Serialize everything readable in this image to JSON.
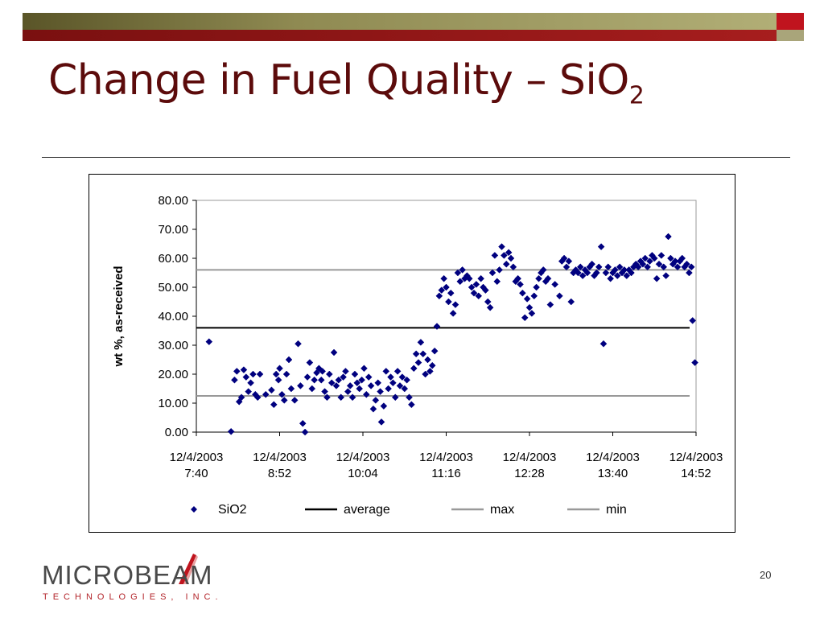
{
  "slide": {
    "title_main": "Change in Fuel Quality – SiO",
    "title_sub": "2",
    "page_number": "20",
    "logo_word": "MICROBEAM",
    "logo_sub": "TECHNOLOGIES, INC.",
    "colors": {
      "title": "#5c0b0b",
      "bar_dark": "#7a1010",
      "bar_olive": "#8f8a52",
      "accent_red": "#c0141e"
    }
  },
  "chart_data": {
    "type": "scatter",
    "ylabel": "wt %, as-received",
    "xlabel": "",
    "ylim": [
      0,
      80
    ],
    "y_ticks": [
      "0.00",
      "10.00",
      "20.00",
      "30.00",
      "40.00",
      "50.00",
      "60.00",
      "70.00",
      "80.00"
    ],
    "x_tick_labels": [
      [
        "12/4/2003",
        "7:40"
      ],
      [
        "12/4/2003",
        "8:52"
      ],
      [
        "12/4/2003",
        "10:04"
      ],
      [
        "12/4/2003",
        "11:16"
      ],
      [
        "12/4/2003",
        "12:28"
      ],
      [
        "12/4/2003",
        "13:40"
      ],
      [
        "12/4/2003",
        "14:52"
      ]
    ],
    "x_range_minutes": [
      460,
      892
    ],
    "grid": false,
    "legend_position": "bottom",
    "series": [
      {
        "name": "SiO2",
        "kind": "marker",
        "color": "#00007f",
        "points": [
          [
            471,
            31.2
          ],
          [
            490,
            0.2
          ],
          [
            493,
            18
          ],
          [
            495,
            21
          ],
          [
            497,
            10.5
          ],
          [
            499,
            12
          ],
          [
            501,
            21.5
          ],
          [
            503,
            19
          ],
          [
            505,
            14
          ],
          [
            507,
            17
          ],
          [
            509,
            20
          ],
          [
            511,
            13
          ],
          [
            513,
            12
          ],
          [
            515,
            20
          ],
          [
            520,
            13
          ],
          [
            525,
            14.5
          ],
          [
            527,
            9.5
          ],
          [
            529,
            20
          ],
          [
            531,
            18
          ],
          [
            532,
            22
          ],
          [
            534,
            13
          ],
          [
            536,
            11
          ],
          [
            538,
            20
          ],
          [
            540,
            25
          ],
          [
            542,
            15
          ],
          [
            545,
            11
          ],
          [
            548,
            30.5
          ],
          [
            550,
            16
          ],
          [
            552,
            3
          ],
          [
            554,
            0
          ],
          [
            556,
            19
          ],
          [
            558,
            24
          ],
          [
            560,
            15
          ],
          [
            562,
            18
          ],
          [
            564,
            20.5
          ],
          [
            566,
            22
          ],
          [
            568,
            18
          ],
          [
            569,
            21
          ],
          [
            571,
            14
          ],
          [
            573,
            12
          ],
          [
            575,
            20
          ],
          [
            577,
            17
          ],
          [
            579,
            27.5
          ],
          [
            581,
            16
          ],
          [
            583,
            18
          ],
          [
            585,
            12
          ],
          [
            587,
            19
          ],
          [
            589,
            21
          ],
          [
            591,
            14
          ],
          [
            593,
            16
          ],
          [
            595,
            12
          ],
          [
            597,
            20
          ],
          [
            599,
            17
          ],
          [
            601,
            15
          ],
          [
            603,
            18
          ],
          [
            605,
            22
          ],
          [
            607,
            13
          ],
          [
            609,
            19
          ],
          [
            611,
            16
          ],
          [
            613,
            8
          ],
          [
            615,
            11
          ],
          [
            617,
            17
          ],
          [
            619,
            14
          ],
          [
            620,
            3.5
          ],
          [
            622,
            9
          ],
          [
            624,
            21
          ],
          [
            626,
            15
          ],
          [
            628,
            19
          ],
          [
            630,
            17
          ],
          [
            632,
            12
          ],
          [
            634,
            21
          ],
          [
            636,
            16
          ],
          [
            638,
            19
          ],
          [
            640,
            15
          ],
          [
            642,
            18
          ],
          [
            644,
            12
          ],
          [
            646,
            9.5
          ],
          [
            648,
            22
          ],
          [
            650,
            27
          ],
          [
            652,
            24
          ],
          [
            654,
            31
          ],
          [
            656,
            27
          ],
          [
            658,
            20
          ],
          [
            660,
            25
          ],
          [
            662,
            21
          ],
          [
            664,
            23
          ],
          [
            666,
            28
          ],
          [
            668,
            36.5
          ],
          [
            670,
            47
          ],
          [
            672,
            49
          ],
          [
            674,
            53
          ],
          [
            676,
            50
          ],
          [
            678,
            45
          ],
          [
            680,
            48
          ],
          [
            682,
            41
          ],
          [
            684,
            44
          ],
          [
            686,
            55
          ],
          [
            688,
            52
          ],
          [
            690,
            56
          ],
          [
            692,
            53
          ],
          [
            694,
            54
          ],
          [
            696,
            53
          ],
          [
            698,
            50
          ],
          [
            700,
            48
          ],
          [
            702,
            51
          ],
          [
            704,
            47
          ],
          [
            706,
            53
          ],
          [
            708,
            50
          ],
          [
            710,
            49
          ],
          [
            712,
            45
          ],
          [
            714,
            43
          ],
          [
            716,
            55
          ],
          [
            718,
            61
          ],
          [
            720,
            52
          ],
          [
            722,
            56
          ],
          [
            724,
            64
          ],
          [
            726,
            61
          ],
          [
            728,
            58
          ],
          [
            730,
            62
          ],
          [
            732,
            60
          ],
          [
            734,
            57
          ],
          [
            736,
            52
          ],
          [
            738,
            53
          ],
          [
            740,
            51
          ],
          [
            742,
            48
          ],
          [
            744,
            39.5
          ],
          [
            746,
            46
          ],
          [
            748,
            43
          ],
          [
            750,
            41
          ],
          [
            752,
            47
          ],
          [
            754,
            50
          ],
          [
            756,
            53
          ],
          [
            758,
            55
          ],
          [
            760,
            56
          ],
          [
            762,
            52
          ],
          [
            764,
            53
          ],
          [
            766,
            44
          ],
          [
            770,
            51
          ],
          [
            774,
            47
          ],
          [
            776,
            59
          ],
          [
            778,
            60
          ],
          [
            780,
            57
          ],
          [
            782,
            59
          ],
          [
            784,
            45
          ],
          [
            786,
            55
          ],
          [
            788,
            56
          ],
          [
            790,
            55
          ],
          [
            792,
            57
          ],
          [
            794,
            54
          ],
          [
            796,
            56
          ],
          [
            798,
            55
          ],
          [
            800,
            57
          ],
          [
            802,
            58
          ],
          [
            804,
            54
          ],
          [
            806,
            55
          ],
          [
            808,
            57
          ],
          [
            810,
            64
          ],
          [
            812,
            30.5
          ],
          [
            814,
            55
          ],
          [
            816,
            57
          ],
          [
            818,
            53
          ],
          [
            820,
            55
          ],
          [
            822,
            56
          ],
          [
            824,
            54
          ],
          [
            826,
            57
          ],
          [
            828,
            55
          ],
          [
            830,
            56
          ],
          [
            832,
            54
          ],
          [
            834,
            56
          ],
          [
            836,
            55
          ],
          [
            838,
            57
          ],
          [
            840,
            58
          ],
          [
            842,
            57
          ],
          [
            844,
            59
          ],
          [
            846,
            58
          ],
          [
            848,
            60
          ],
          [
            850,
            57
          ],
          [
            852,
            59
          ],
          [
            854,
            61
          ],
          [
            856,
            60
          ],
          [
            858,
            53
          ],
          [
            860,
            58
          ],
          [
            862,
            61
          ],
          [
            864,
            57
          ],
          [
            866,
            54
          ],
          [
            868,
            67.5
          ],
          [
            870,
            60
          ],
          [
            872,
            58
          ],
          [
            874,
            59
          ],
          [
            876,
            57
          ],
          [
            878,
            59
          ],
          [
            880,
            60
          ],
          [
            882,
            57
          ],
          [
            884,
            58
          ],
          [
            886,
            55
          ],
          [
            888,
            57
          ],
          [
            889,
            38.5
          ],
          [
            891,
            24
          ]
        ]
      },
      {
        "name": "average",
        "kind": "hline",
        "value": 36.0,
        "color": "#000000"
      },
      {
        "name": "max",
        "kind": "hline",
        "value": 56.0,
        "color": "#999999"
      },
      {
        "name": "min",
        "kind": "hline",
        "value": 12.5,
        "color": "#999999"
      }
    ]
  }
}
